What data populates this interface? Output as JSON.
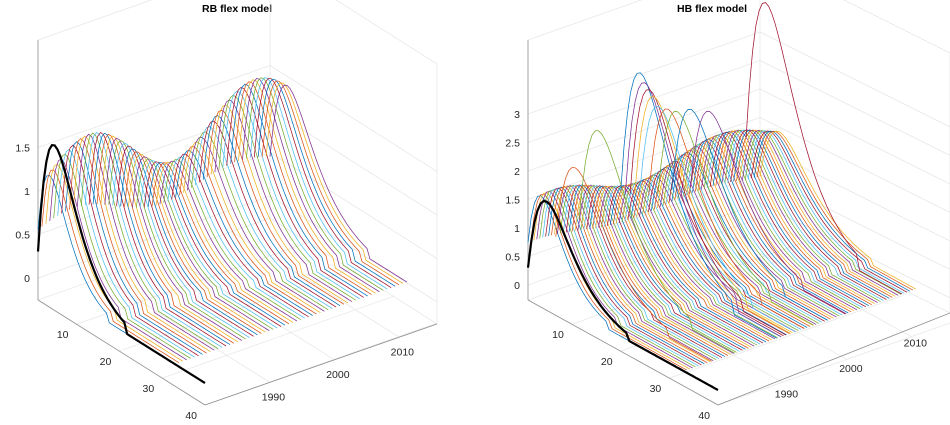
{
  "chart_data": [
    {
      "type": "line",
      "title": "RB flex model",
      "z_ticks": [
        "0",
        "0.5",
        "1",
        "1.5"
      ],
      "x_ticks": [
        "10",
        "20",
        "30",
        "40"
      ],
      "y_ticks": [
        "1990",
        "2000",
        "2010"
      ],
      "zlim": [
        0,
        1.6
      ],
      "x_range": [
        1,
        40
      ],
      "y_range": [
        1980,
        2016
      ],
      "grid": true,
      "series_description": "surface of age profiles, one curve per year 1980-2015",
      "series": [
        {
          "year_from": 1980,
          "year_to": 2015,
          "peak_age": 9,
          "peak_value": 1.3
        }
      ],
      "highlight": {
        "color": "#000000",
        "peak_age": 5,
        "peak_value": 1.55
      }
    },
    {
      "type": "line",
      "title": "HB flex model",
      "z_ticks": [
        "0",
        "0.5",
        "1",
        "1.5",
        "2",
        "2.5",
        "3"
      ],
      "x_ticks": [
        "10",
        "20",
        "30",
        "40"
      ],
      "y_ticks": [
        "1990",
        "2000",
        "2010"
      ],
      "zlim": [
        0,
        3.2
      ],
      "x_range": [
        1,
        40
      ],
      "y_range": [
        1980,
        2016
      ],
      "grid": true,
      "series_description": "surface of age profiles, one curve per year 1980-2015",
      "series": [
        {
          "year_from": 1980,
          "year_to": 2015,
          "peak_age": 8,
          "peak_value": 1.5
        }
      ],
      "highlight": {
        "color": "#000000",
        "peak_age": 5,
        "peak_value": 1.55
      }
    }
  ],
  "palette": [
    "#0072BD",
    "#D95319",
    "#EDB120",
    "#7E2F8E",
    "#77AC30",
    "#4DBEEE",
    "#A2142F"
  ]
}
